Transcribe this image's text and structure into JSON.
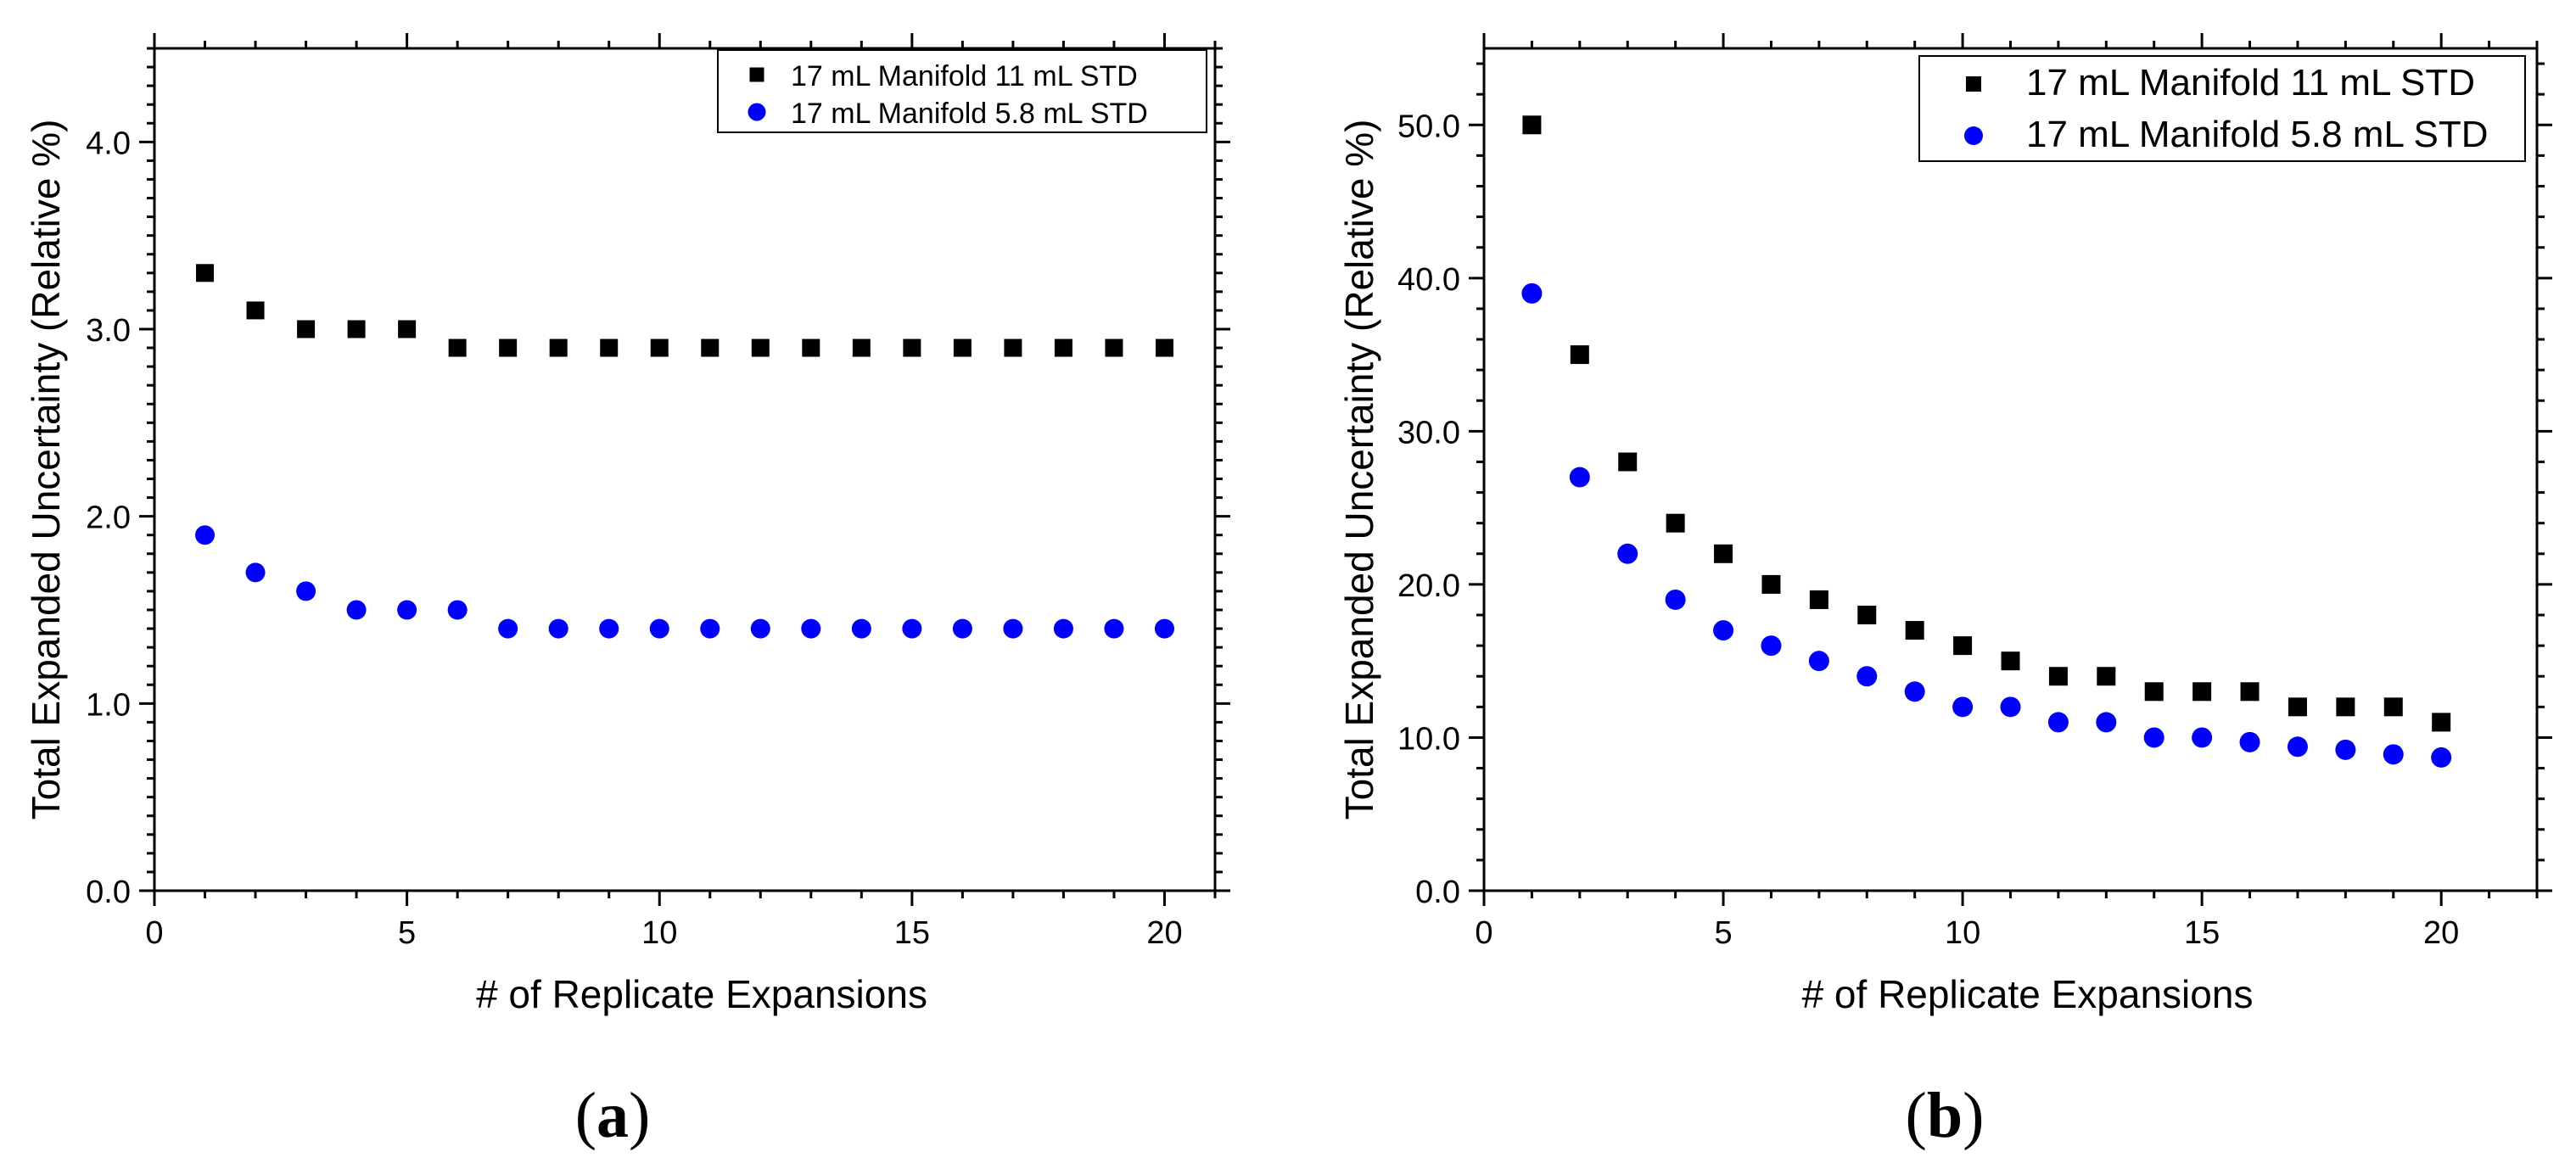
{
  "chart_data": [
    {
      "type": "scatter",
      "panel": "(a)",
      "panel_letter": "a",
      "xlabel": "# of Replicate Expansions",
      "ylabel": "Total Expanded Uncertainty (Relative %)",
      "xlim": [
        0,
        21
      ],
      "ylim": [
        0,
        4.5
      ],
      "xticks": [
        0,
        5,
        10,
        15,
        20
      ],
      "yticks": [
        0.0,
        1.0,
        2.0,
        3.0,
        4.0
      ],
      "ytick_labels": [
        "0.0",
        "1.0",
        "2.0",
        "3.0",
        "4.0"
      ],
      "legend_position": "top-right",
      "series": [
        {
          "name": "17 mL Manifold 11 mL STD",
          "marker": "square",
          "color": "#000000",
          "x": [
            1,
            2,
            3,
            4,
            5,
            6,
            7,
            8,
            9,
            10,
            11,
            12,
            13,
            14,
            15,
            16,
            17,
            18,
            19,
            20
          ],
          "y": [
            3.3,
            3.1,
            3.0,
            3.0,
            3.0,
            2.9,
            2.9,
            2.9,
            2.9,
            2.9,
            2.9,
            2.9,
            2.9,
            2.9,
            2.9,
            2.9,
            2.9,
            2.9,
            2.9,
            2.9
          ]
        },
        {
          "name": "17 mL Manifold 5.8 mL STD",
          "marker": "circle",
          "color": "#0000ff",
          "x": [
            1,
            2,
            3,
            4,
            5,
            6,
            7,
            8,
            9,
            10,
            11,
            12,
            13,
            14,
            15,
            16,
            17,
            18,
            19,
            20
          ],
          "y": [
            1.9,
            1.7,
            1.6,
            1.5,
            1.5,
            1.5,
            1.4,
            1.4,
            1.4,
            1.4,
            1.4,
            1.4,
            1.4,
            1.4,
            1.4,
            1.4,
            1.4,
            1.4,
            1.4,
            1.4
          ]
        }
      ]
    },
    {
      "type": "scatter",
      "panel": "(b)",
      "panel_letter": "b",
      "xlabel": "# of Replicate Expansions",
      "ylabel": "Total Expanded Uncertainty (Relative %)",
      "xlim": [
        0,
        22
      ],
      "ylim": [
        0,
        55
      ],
      "xticks": [
        0,
        5,
        10,
        15,
        20
      ],
      "yticks": [
        0,
        10,
        20,
        30,
        40,
        50
      ],
      "ytick_labels": [
        "0.0",
        "10.0",
        "20.0",
        "30.0",
        "40.0",
        "50.0"
      ],
      "legend_position": "top-right",
      "series": [
        {
          "name": "17 mL Manifold 11 mL STD",
          "marker": "square",
          "color": "#000000",
          "x": [
            1,
            2,
            3,
            4,
            5,
            6,
            7,
            8,
            9,
            10,
            11,
            12,
            13,
            14,
            15,
            16,
            17,
            18,
            19,
            20
          ],
          "y": [
            50,
            35,
            28,
            24,
            22,
            20,
            19,
            18,
            17,
            16,
            15,
            14,
            14,
            13,
            13,
            13,
            12,
            12,
            12,
            11
          ]
        },
        {
          "name": "17 mL Manifold 5.8 mL STD",
          "marker": "circle",
          "color": "#0000ff",
          "x": [
            1,
            2,
            3,
            4,
            5,
            6,
            7,
            8,
            9,
            10,
            11,
            12,
            13,
            14,
            15,
            16,
            17,
            18,
            19,
            20
          ],
          "y": [
            39,
            27,
            22,
            19,
            17,
            16,
            15,
            14,
            13,
            12,
            12,
            11,
            11,
            10,
            10,
            9.7,
            9.4,
            9.2,
            8.9,
            8.7
          ]
        }
      ]
    }
  ]
}
